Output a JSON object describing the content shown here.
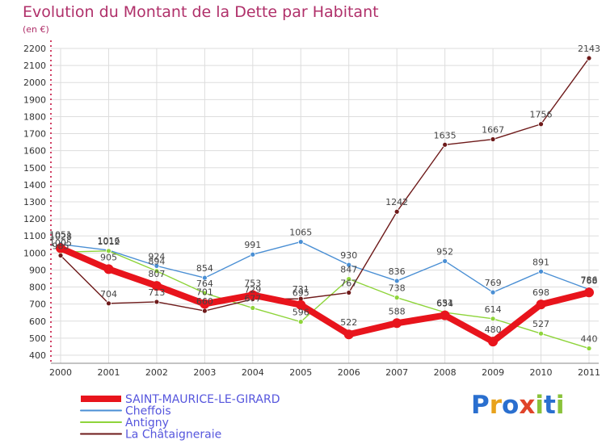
{
  "header": {
    "title": "Evolution du Montant de la Dette par Habitant",
    "unit": "(en €)"
  },
  "logo": {
    "text": "Proxiti",
    "colors": [
      "#2a6fcf",
      "#e8a21c",
      "#2a6fcf",
      "#e0442a",
      "#8ac23a",
      "#2a6fcf",
      "#8ac23a"
    ]
  },
  "colors": {
    "title": "#b0306a",
    "axis": "#c00030",
    "grid": "#dddddd",
    "plot_bg": "#ffffff"
  },
  "chart_data": {
    "type": "line",
    "title": "Evolution du Montant de la Dette par Habitant",
    "ylabel": "(en €)",
    "xlabel": "",
    "x": [
      "2000",
      "2001",
      "2002",
      "2003",
      "2004",
      "2005",
      "2006",
      "2007",
      "2008",
      "2009",
      "2010",
      "2011"
    ],
    "ylim": [
      400,
      2200
    ],
    "yticks": [
      400,
      500,
      600,
      700,
      800,
      900,
      1000,
      1100,
      1200,
      1300,
      1400,
      1500,
      1600,
      1700,
      1800,
      1900,
      2000,
      2100,
      2200
    ],
    "grid": true,
    "legend_position": "bottom-left",
    "series": [
      {
        "name": "SAINT-MAURICE-LE-GIRARD",
        "color": "#e8141c",
        "values": [
          1028,
          905,
          807,
          701,
          753,
          695,
          522,
          588,
          634,
          480,
          698,
          768
        ],
        "labels": [
          "1028",
          "905",
          "807",
          "701",
          "753",
          "695",
          "522",
          "588",
          "634",
          "480",
          "698",
          "768"
        ]
      },
      {
        "name": "Cheffois",
        "color": "#4a8fd4",
        "values": [
          1051,
          1016,
          924,
          854,
          991,
          1065,
          930,
          836,
          952,
          769,
          891,
          786
        ],
        "labels": [
          "1051",
          "1016",
          "924",
          "854",
          "991",
          "1065",
          "930",
          "836",
          "952",
          "769",
          "891",
          "786"
        ]
      },
      {
        "name": "Antigny",
        "color": "#8ed43a",
        "values": [
          1005,
          1012,
          894,
          764,
          677,
          596,
          847,
          738,
          651,
          614,
          527,
          440
        ],
        "labels": [
          "1005",
          "1012",
          "894",
          "764",
          "677",
          "596",
          "847",
          "738",
          "651",
          "614",
          "527",
          "440"
        ]
      },
      {
        "name": "La Châtaigneraie",
        "color": "#6e1a1a",
        "values": [
          985,
          704,
          713,
          660,
          729,
          731,
          767,
          1242,
          1635,
          1667,
          1756,
          2143
        ],
        "labels": [
          "985",
          "704",
          "713",
          "660",
          "729",
          "731",
          "767",
          "1242",
          "1635",
          "1667",
          "1756",
          "2143"
        ]
      }
    ]
  }
}
